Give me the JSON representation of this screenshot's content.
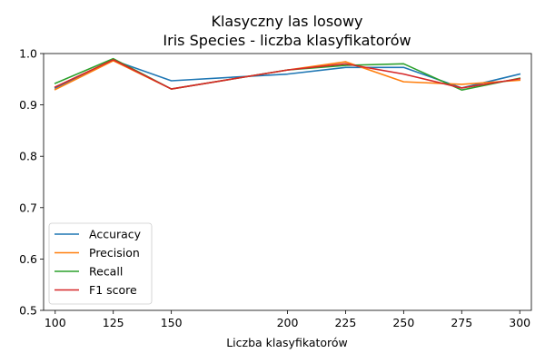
{
  "chart_data": {
    "type": "line",
    "title": "Klasyczny las losowy",
    "subtitle": "Iris Species - liczba klasyfikatorów",
    "xlabel": "Liczba klasyfikatorów",
    "ylabel": "",
    "x": [
      100,
      125,
      150,
      200,
      225,
      250,
      275,
      300
    ],
    "xticks": [
      100,
      125,
      150,
      200,
      225,
      250,
      275,
      300
    ],
    "yticks": [
      0.5,
      0.6,
      0.7,
      0.8,
      0.9,
      1.0
    ],
    "ytick_labels": [
      "0.5",
      "0.6",
      "0.7",
      "0.8",
      "0.9",
      "1.0"
    ],
    "xlim": [
      95,
      305
    ],
    "ylim": [
      0.5,
      1.0
    ],
    "grid": false,
    "legend_position": "lower-left",
    "series": [
      {
        "name": "Accuracy",
        "color": "#1f77b4",
        "values": [
          0.933,
          0.987,
          0.947,
          0.96,
          0.973,
          0.973,
          0.933,
          0.96
        ]
      },
      {
        "name": "Precision",
        "color": "#ff7f0e",
        "values": [
          0.93,
          0.986,
          0.931,
          0.968,
          0.984,
          0.945,
          0.94,
          0.948
        ]
      },
      {
        "name": "Recall",
        "color": "#2ca02c",
        "values": [
          0.942,
          0.99,
          0.931,
          0.968,
          0.977,
          0.98,
          0.929,
          0.952
        ]
      },
      {
        "name": "F1 score",
        "color": "#d62728",
        "values": [
          0.935,
          0.988,
          0.931,
          0.968,
          0.98,
          0.96,
          0.933,
          0.951
        ]
      }
    ]
  }
}
